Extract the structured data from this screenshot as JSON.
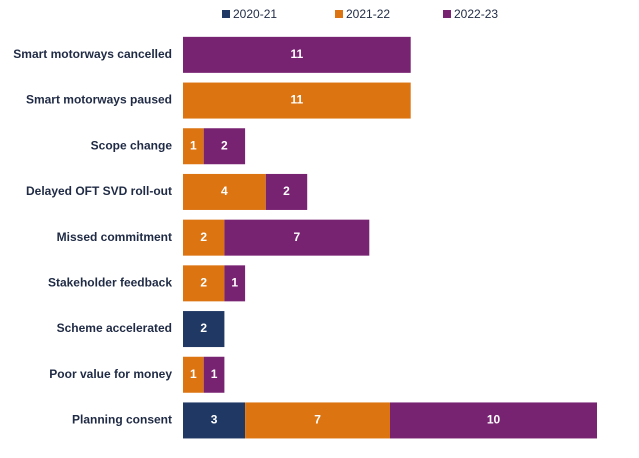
{
  "chart_data": {
    "type": "stacked-bar-horizontal",
    "categories": [
      "Smart motorways cancelled",
      "Smart motorways paused",
      "Scope change",
      "Delayed OFT SVD roll-out",
      "Missed commitment",
      "Stakeholder feedback",
      "Scheme accelerated",
      "Poor value for money",
      "Planning consent"
    ],
    "series": [
      {
        "name": "2020-21",
        "color": "#203864",
        "values": [
          null,
          null,
          null,
          null,
          null,
          null,
          2,
          null,
          3
        ]
      },
      {
        "name": "2021-22",
        "color": "#dc7412",
        "values": [
          null,
          11,
          1,
          4,
          2,
          2,
          null,
          1,
          7
        ]
      },
      {
        "name": "2022-23",
        "color": "#782272",
        "values": [
          11,
          null,
          2,
          2,
          7,
          1,
          null,
          1,
          10
        ]
      }
    ],
    "legend": "top"
  }
}
